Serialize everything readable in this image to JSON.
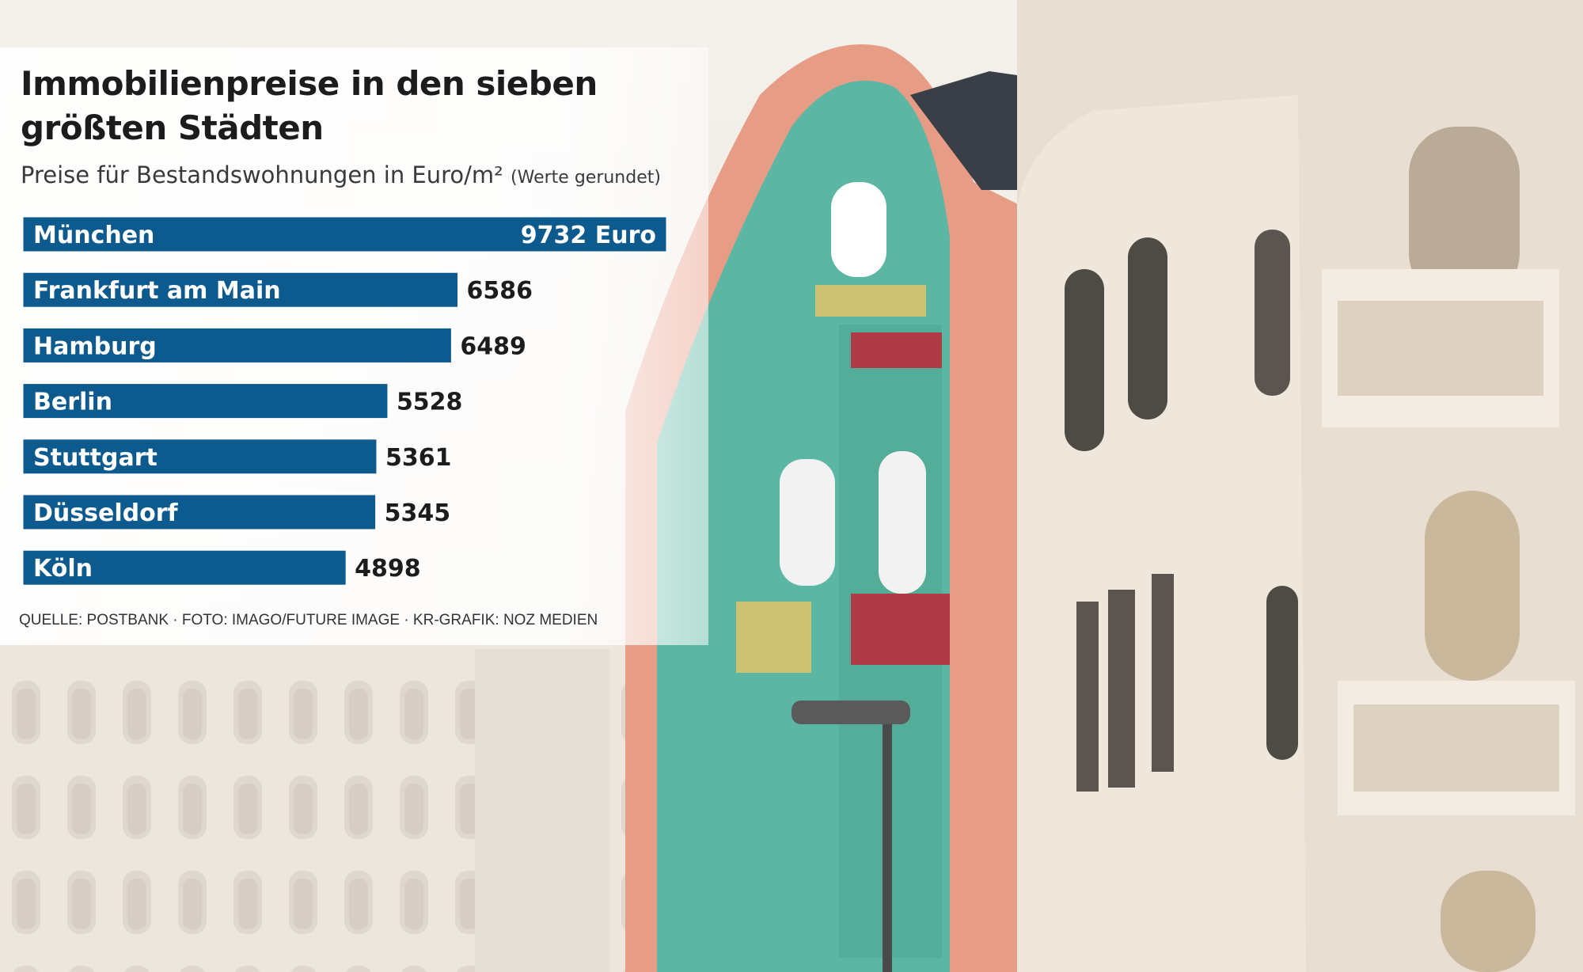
{
  "chart_data": {
    "type": "bar",
    "orientation": "horizontal",
    "title": "Immobilienpreise in den sieben größten Städten",
    "subtitle": "Preise für Bestandswohnungen in Euro/m²",
    "subtitle_note": "(Werte gerundet)",
    "categories": [
      "München",
      "Frankfurt am Main",
      "Hamburg",
      "Berlin",
      "Stuttgart",
      "Düsseldorf",
      "Köln"
    ],
    "values": [
      9732,
      6586,
      6489,
      5528,
      5361,
      5345,
      4898
    ],
    "value_labels": [
      "9732 Euro",
      "6586",
      "6489",
      "5528",
      "5361",
      "5345",
      "4898"
    ],
    "xlim": [
      0,
      9732
    ],
    "grid": false,
    "bar_color": "#0d5a8f",
    "label_color": "#ffffff",
    "value_color": "#1c1c1c"
  },
  "source": "QUELLE: POSTBANK · FOTO: IMAGO/FUTURE IMAGE · KR-GRAFIK: NOZ MEDIEN"
}
